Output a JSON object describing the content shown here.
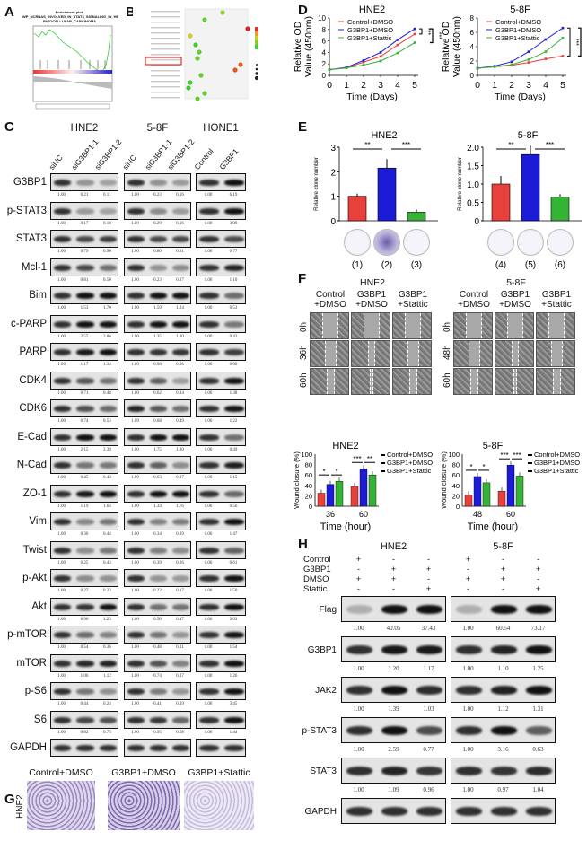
{
  "panels": {
    "A": "A",
    "B": "B",
    "C": "C",
    "D": "D",
    "E": "E",
    "F": "F",
    "G": "G",
    "H": "H"
  },
  "colors": {
    "control": "#e8403a",
    "g3bp1": "#1c1cd8",
    "stattic": "#35b335"
  },
  "panelA": {
    "title_line1": "Enrichment plot:",
    "title_line2": "WP_NCRNAS_INVOLVED_IN_STAT3_SIGNALING_IN_HE",
    "title_line3": "PATOCELLULAR_CARCINOMA"
  },
  "panelC": {
    "cell_lines": [
      "HNE2",
      "5-8F",
      "HONE1"
    ],
    "lanes": [
      [
        "siNC",
        "siG3BP1-1",
        "siG3BP1-2"
      ],
      [
        "siNC",
        "siG3BP1-1",
        "siG3BP1-2"
      ],
      [
        "Control",
        "G3BP1"
      ]
    ],
    "rows": [
      {
        "name": "G3BP1",
        "values": [
          [
            "1.00",
            "0.21",
            "0.11"
          ],
          [
            "1.00",
            "0.23",
            "0.16"
          ],
          [
            "1.00",
            "6.19"
          ]
        ]
      },
      {
        "name": "p-STAT3",
        "values": [
          [
            "1.00",
            "0.17",
            "0.10"
          ],
          [
            "1.00",
            "0.29",
            "0.16"
          ],
          [
            "1.00",
            "3.99"
          ]
        ]
      },
      {
        "name": "STAT3",
        "values": [
          [
            "1.00",
            "0.79",
            "0.90"
          ],
          [
            "1.00",
            "0.80",
            "0.81"
          ],
          [
            "1.00",
            "0.77"
          ]
        ]
      },
      {
        "name": "Mcl-1",
        "values": [
          [
            "1.00",
            "0.81",
            "0.50"
          ],
          [
            "1.00",
            "0.23",
            "0.27"
          ],
          [
            "1.00",
            "1.10"
          ]
        ]
      },
      {
        "name": "Bim",
        "values": [
          [
            "1.00",
            "1.53",
            "1.70"
          ],
          [
            "1.00",
            "1.59",
            "1.24"
          ],
          [
            "1.00",
            "0.53"
          ]
        ]
      },
      {
        "name": "c-PARP",
        "values": [
          [
            "1.00",
            "2.55",
            "2.06"
          ],
          [
            "1.00",
            "1.35",
            "1.30"
          ],
          [
            "1.00",
            "0.43"
          ]
        ]
      },
      {
        "name": "PARP",
        "values": [
          [
            "1.00",
            "1.17",
            "1.34"
          ],
          [
            "1.00",
            "0.98",
            "0.96"
          ],
          [
            "1.00",
            "0.90"
          ]
        ]
      },
      {
        "name": "CDK4",
        "values": [
          [
            "1.00",
            "0.71",
            "0.48"
          ],
          [
            "1.00",
            "0.62",
            "0.14"
          ],
          [
            "1.00",
            "1.38"
          ]
        ]
      },
      {
        "name": "CDK6",
        "values": [
          [
            "1.00",
            "0.74",
            "0.53"
          ],
          [
            "1.09",
            "0.68",
            "0.49"
          ],
          [
            "1.00",
            "1.22"
          ]
        ]
      },
      {
        "name": "E-Cad",
        "values": [
          [
            "1.00",
            "2.15",
            "2.39"
          ],
          [
            "1.00",
            "1.75",
            "1.30"
          ],
          [
            "1.00",
            "0.49"
          ]
        ]
      },
      {
        "name": "N-Cad",
        "values": [
          [
            "1.00",
            "0.45",
            "0.43"
          ],
          [
            "1.00",
            "0.63",
            "0.27"
          ],
          [
            "1.00",
            "1.15"
          ]
        ]
      },
      {
        "name": "ZO-1",
        "values": [
          [
            "1.00",
            "1.19",
            "1.64"
          ],
          [
            "1.00",
            "1.34",
            "1.76"
          ],
          [
            "1.00",
            "0.56"
          ]
        ]
      },
      {
        "name": "Vim",
        "values": [
          [
            "1.00",
            "0.30",
            "0.44"
          ],
          [
            "1.00",
            "0.34",
            "0.39"
          ],
          [
            "1.00",
            "1.47"
          ]
        ]
      },
      {
        "name": "Twist",
        "values": [
          [
            "1.00",
            "0.25",
            "0.43"
          ],
          [
            "1.00",
            "0.39",
            "0.26"
          ],
          [
            "1.00",
            "0.61"
          ]
        ]
      },
      {
        "name": "p-Akt",
        "values": [
          [
            "1.00",
            "0.27",
            "0.23"
          ],
          [
            "1.00",
            "0.22",
            "0.17"
          ],
          [
            "1.00",
            "1.50"
          ]
        ]
      },
      {
        "name": "Akt",
        "values": [
          [
            "1.00",
            "0.96",
            "1.23"
          ],
          [
            "1.00",
            "0.50",
            "0.47"
          ],
          [
            "1.00",
            "2.03"
          ]
        ]
      },
      {
        "name": "p-mTOR",
        "values": [
          [
            "1.00",
            "0.54",
            "0.36"
          ],
          [
            "1.00",
            "0.48",
            "0.21"
          ],
          [
            "1.00",
            "1.54"
          ]
        ]
      },
      {
        "name": "mTOR",
        "values": [
          [
            "1.00",
            "1.06",
            "1.12"
          ],
          [
            "1.00",
            "0.74",
            "0.37"
          ],
          [
            "1.00",
            "1.26"
          ]
        ]
      },
      {
        "name": "p-S6",
        "values": [
          [
            "1.00",
            "0.44",
            "0.24"
          ],
          [
            "1.00",
            "0.41",
            "0.19"
          ],
          [
            "1.00",
            "3.45"
          ]
        ]
      },
      {
        "name": "S6",
        "values": [
          [
            "1.00",
            "0.82",
            "0.75"
          ],
          [
            "1.00",
            "0.95",
            "0.58"
          ],
          [
            "1.00",
            "1.44"
          ]
        ]
      },
      {
        "name": "GAPDH",
        "values": null
      }
    ]
  },
  "chart_data": [
    {
      "panel": "D",
      "type": "line",
      "title": "HNE2",
      "xlabel": "Time (Days)",
      "ylabel": "Relative OD Value (450nm)",
      "x": [
        0,
        1,
        2,
        3,
        4,
        5
      ],
      "ylim": [
        0,
        10
      ],
      "yticks": [
        0,
        2,
        4,
        6,
        8,
        10
      ],
      "significance": "***",
      "series": [
        {
          "name": "Control+DMSO",
          "values": [
            1,
            1.3,
            2.3,
            3.3,
            5.3,
            7.2
          ]
        },
        {
          "name": "G3BP1+DMSO",
          "values": [
            1,
            1.4,
            2.6,
            4.0,
            6.2,
            8.1
          ]
        },
        {
          "name": "G3BP1+Stattic",
          "values": [
            1,
            1.3,
            1.8,
            2.5,
            3.9,
            5.7
          ]
        }
      ]
    },
    {
      "panel": "D",
      "type": "line",
      "title": "5-8F",
      "xlabel": "Time (Days)",
      "ylabel": "Relative OD Value (450nm)",
      "x": [
        0,
        1,
        2,
        3,
        4,
        5
      ],
      "ylim": [
        0,
        8
      ],
      "yticks": [
        0,
        2,
        4,
        6,
        8
      ],
      "significance": "***",
      "series": [
        {
          "name": "Control+DMSO",
          "values": [
            1,
            1.2,
            1.4,
            1.8,
            2.3,
            2.7
          ]
        },
        {
          "name": "G3BP1+DMSO",
          "values": [
            1,
            1.3,
            1.9,
            3.3,
            5.0,
            6.6
          ]
        },
        {
          "name": "G3BP1+Stattic",
          "values": [
            1,
            1.2,
            1.5,
            2.2,
            3.3,
            5.2
          ]
        }
      ]
    },
    {
      "panel": "E",
      "type": "bar",
      "title": "HNE2",
      "ylabel": "Relative clone number",
      "categories": [
        "(1)",
        "(2)",
        "(3)"
      ],
      "values": [
        1.0,
        2.15,
        0.35
      ],
      "ylim": [
        0,
        3
      ],
      "yticks": [
        "0",
        "1",
        "2",
        "3"
      ],
      "sig": [
        "**",
        "***"
      ]
    },
    {
      "panel": "E",
      "type": "bar",
      "title": "5-8F",
      "ylabel": "Relative clone number",
      "categories": [
        "(4)",
        "(5)",
        "(6)"
      ],
      "values": [
        1.0,
        1.8,
        0.65
      ],
      "ylim": [
        0,
        2
      ],
      "yticks": [
        "0",
        "0.5",
        "1.0",
        "1.5",
        "2.0"
      ],
      "sig": [
        "**",
        "***"
      ]
    },
    {
      "panel": "F",
      "type": "bar",
      "title": "HNE2",
      "xlabel": "Time (hour)",
      "ylabel": "Wound closure (%)",
      "categories": [
        "36",
        "60"
      ],
      "ylim": [
        0,
        100
      ],
      "yticks": [
        "0",
        "20",
        "40",
        "60",
        "80",
        "100"
      ],
      "sig": [
        [
          "*",
          "*"
        ],
        [
          "***",
          "**"
        ]
      ],
      "series": [
        {
          "name": "Control+DMSO",
          "values": [
            25,
            38
          ]
        },
        {
          "name": "G3BP1+DMSO",
          "values": [
            42,
            72
          ]
        },
        {
          "name": "G3BP1+Stattic",
          "values": [
            48,
            60
          ]
        }
      ]
    },
    {
      "panel": "F",
      "type": "bar",
      "title": "5-8F",
      "xlabel": "Time (hour)",
      "ylabel": "Wound closure (%)",
      "categories": [
        "48",
        "60"
      ],
      "ylim": [
        0,
        100
      ],
      "yticks": [
        "0",
        "20",
        "40",
        "60",
        "80",
        "100"
      ],
      "sig": [
        [
          "*",
          "*"
        ],
        [
          "***",
          "***"
        ]
      ],
      "series": [
        {
          "name": "Control+DMSO",
          "values": [
            22,
            29
          ]
        },
        {
          "name": "G3BP1+DMSO",
          "values": [
            57,
            79
          ]
        },
        {
          "name": "G3BP1+Stattic",
          "values": [
            45,
            58
          ]
        }
      ]
    }
  ],
  "panelF": {
    "hne2": {
      "title": "HNE2",
      "cols": [
        "Control\n+DMSO",
        "G3BP1\n+DMSO",
        "G3BP1\n+Stattic"
      ],
      "times": [
        "0h",
        "36h",
        "60h"
      ]
    },
    "f58": {
      "title": "5-8F",
      "cols": [
        "Control\n+DMSO",
        "G3BP1\n+DMSO",
        "G3BP1\n+Stattic"
      ],
      "times": [
        "0h",
        "48h",
        "60h"
      ]
    }
  },
  "panelG": {
    "cell": "HNE2",
    "cols": [
      "Control+DMSO",
      "G3BP1+DMSO",
      "G3BP1+Stattic"
    ]
  },
  "panelH": {
    "cell_lines": [
      "HNE2",
      "5-8F"
    ],
    "conditions": [
      {
        "name": "Control",
        "marks": [
          "+",
          "-",
          "-"
        ]
      },
      {
        "name": "G3BP1",
        "marks": [
          "-",
          "+",
          "+"
        ]
      },
      {
        "name": "DMSO",
        "marks": [
          "+",
          "+",
          "-"
        ]
      },
      {
        "name": "Stattic",
        "marks": [
          "-",
          "-",
          "+"
        ]
      }
    ],
    "rows": [
      {
        "name": "Flag",
        "values": [
          [
            "1.00",
            "40.05",
            "37.43"
          ],
          [
            "1.00",
            "60.54",
            "73.17"
          ]
        ]
      },
      {
        "name": "G3BP1",
        "values": [
          [
            "1.00",
            "1.20",
            "1.17"
          ],
          [
            "1.00",
            "1.10",
            "1.25"
          ]
        ]
      },
      {
        "name": "JAK2",
        "values": [
          [
            "1.00",
            "1.39",
            "1.03"
          ],
          [
            "1.00",
            "1.12",
            "1.31"
          ]
        ]
      },
      {
        "name": "p-STAT3",
        "values": [
          [
            "1.00",
            "2.59",
            "0.77"
          ],
          [
            "1.00",
            "3.16",
            "0.63"
          ]
        ]
      },
      {
        "name": "STAT3",
        "values": [
          [
            "1.00",
            "1.09",
            "0.96"
          ],
          [
            "1.00",
            "0.97",
            "1.04"
          ]
        ]
      },
      {
        "name": "GAPDH",
        "values": null
      }
    ]
  }
}
